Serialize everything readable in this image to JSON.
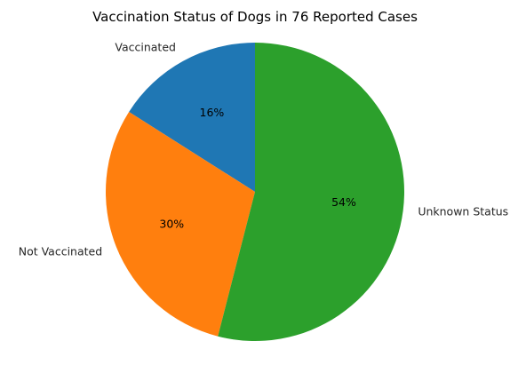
{
  "chart_data": {
    "type": "pie",
    "title": "Vaccination Status of Dogs in 76 Reported Cases",
    "categories": [
      "Vaccinated",
      "Not Vaccinated",
      "Unknown Status"
    ],
    "values": [
      16,
      30,
      54
    ],
    "value_labels": [
      "16%",
      "30%",
      "54%"
    ],
    "colors": [
      "#1f77b4",
      "#ff7f0e",
      "#2ca02c"
    ],
    "start_angle_deg": 90,
    "direction": "counterclockwise"
  }
}
